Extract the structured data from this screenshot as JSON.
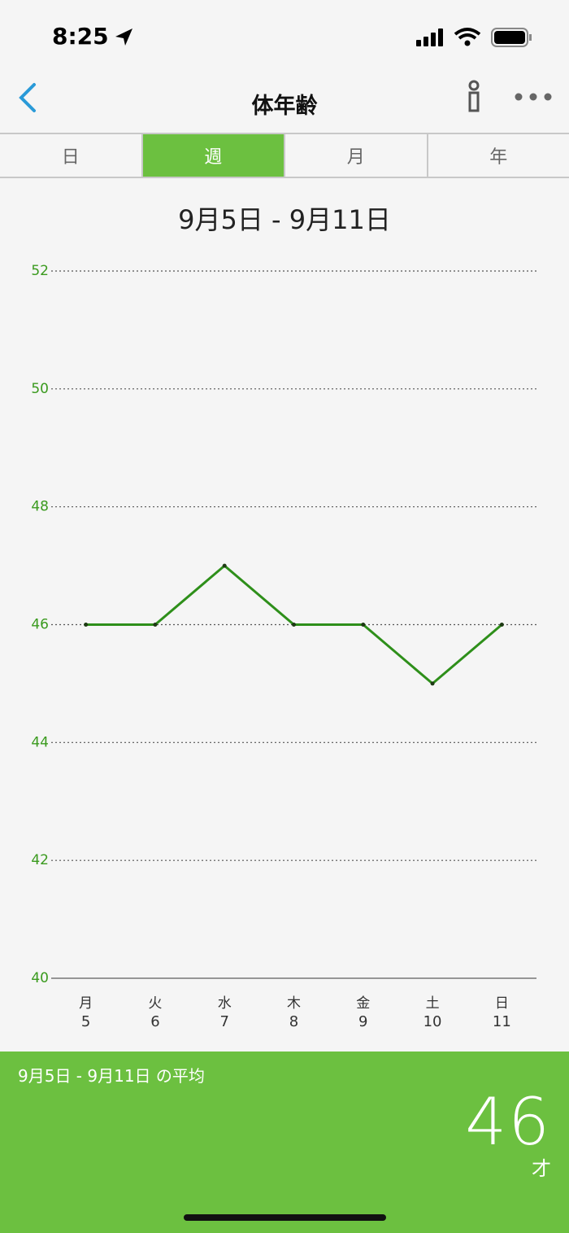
{
  "status_bar": {
    "time": "8:25"
  },
  "nav": {
    "title": "体年齢"
  },
  "tabs": {
    "items": [
      "日",
      "週",
      "月",
      "年"
    ],
    "selected": 1
  },
  "chart_data": {
    "type": "line",
    "title": "9月5日 - 9月11日",
    "categories": [
      "月",
      "火",
      "水",
      "木",
      "金",
      "土",
      "日"
    ],
    "dates": [
      "5",
      "6",
      "7",
      "8",
      "9",
      "10",
      "11"
    ],
    "series": [
      {
        "color": "#2e8f1a",
        "values": [
          46,
          46,
          47,
          46,
          46,
          45,
          46
        ]
      }
    ],
    "ylim": [
      40,
      52
    ],
    "yticks": [
      40,
      42,
      44,
      46,
      48,
      50,
      52
    ],
    "grid": true
  },
  "summary": {
    "label": "9月5日 - 9月11日 の平均",
    "value": 46,
    "unit": "才"
  }
}
